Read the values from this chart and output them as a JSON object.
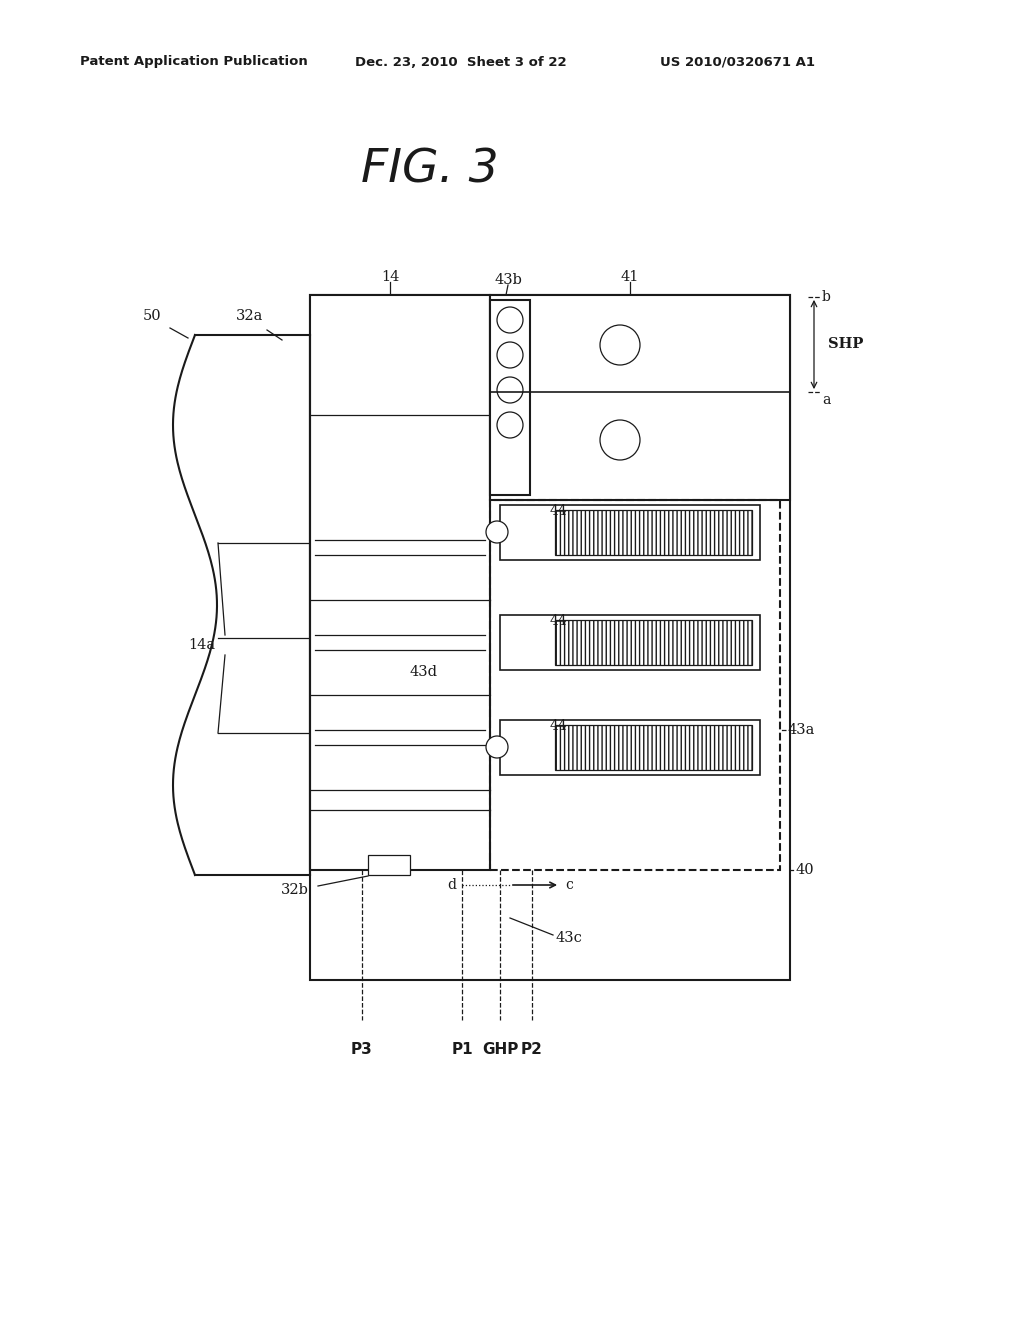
{
  "bg_color": "#ffffff",
  "title": "FIG. 3",
  "header_left": "Patent Application Publication",
  "header_center": "Dec. 23, 2010  Sheet 3 of 22",
  "header_right": "US 2010/0320671 A1",
  "fig_width": 10.24,
  "fig_height": 13.2
}
